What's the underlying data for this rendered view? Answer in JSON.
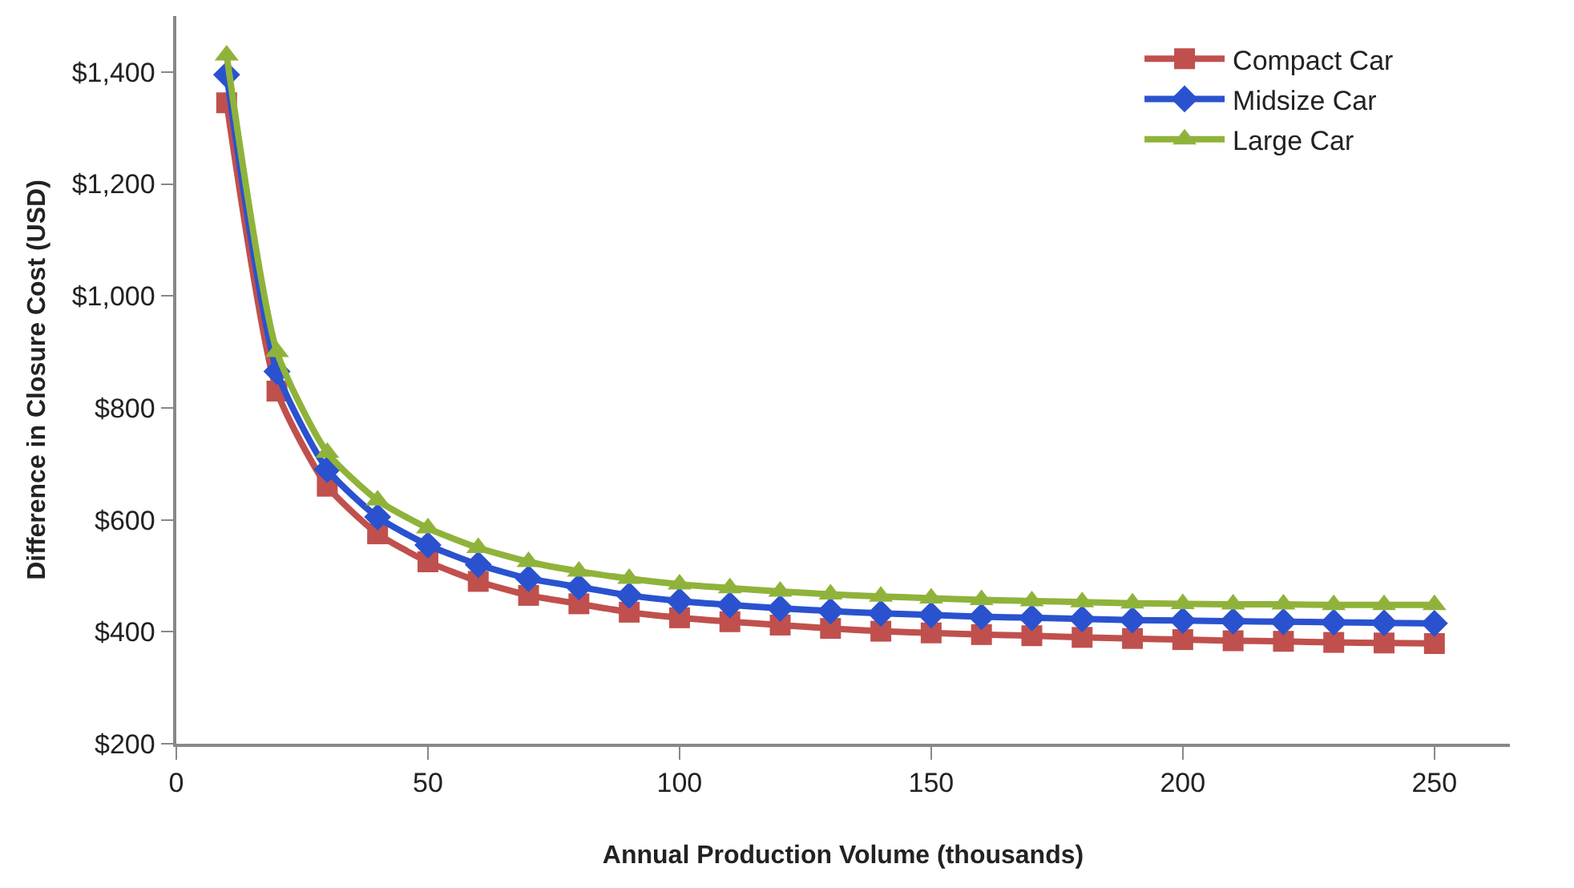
{
  "chart_data": {
    "type": "line",
    "xlabel": "Annual Production Volume (thousands)",
    "ylabel": "Difference in Closure Cost (USD)",
    "x": [
      10,
      20,
      30,
      40,
      50,
      60,
      70,
      80,
      90,
      100,
      110,
      120,
      130,
      140,
      150,
      160,
      170,
      180,
      190,
      200,
      210,
      220,
      230,
      240,
      250
    ],
    "series": [
      {
        "name": "Compact Car",
        "color": "#c0504d",
        "marker": "square",
        "values": [
          1345,
          830,
          660,
          575,
          525,
          490,
          465,
          450,
          435,
          425,
          418,
          412,
          406,
          401,
          398,
          395,
          393,
          390,
          388,
          386,
          384,
          383,
          381,
          380,
          379
        ]
      },
      {
        "name": "Midsize Car",
        "color": "#2a52cf",
        "marker": "diamond",
        "values": [
          1395,
          865,
          690,
          605,
          555,
          520,
          495,
          480,
          465,
          455,
          448,
          442,
          437,
          433,
          430,
          427,
          425,
          423,
          421,
          420,
          419,
          418,
          417,
          416,
          415
        ]
      },
      {
        "name": "Large Car",
        "color": "#8fb33a",
        "marker": "triangle",
        "values": [
          1430,
          900,
          720,
          635,
          585,
          550,
          525,
          508,
          495,
          485,
          478,
          472,
          467,
          463,
          460,
          457,
          455,
          453,
          451,
          450,
          449,
          449,
          448,
          448,
          448
        ]
      }
    ],
    "xlim": [
      0,
      265
    ],
    "xticks": [
      0,
      50,
      100,
      150,
      200,
      250
    ],
    "ylim": [
      200,
      1500
    ],
    "yticks": [
      {
        "value": 200,
        "label": "$200"
      },
      {
        "value": 400,
        "label": "$400"
      },
      {
        "value": 600,
        "label": "$600"
      },
      {
        "value": 800,
        "label": "$800"
      },
      {
        "value": 1000,
        "label": "$1,000"
      },
      {
        "value": 1200,
        "label": "$1,200"
      },
      {
        "value": 1400,
        "label": "$1,400"
      }
    ],
    "grid": false,
    "legend": "top right",
    "line_style": "solid"
  }
}
